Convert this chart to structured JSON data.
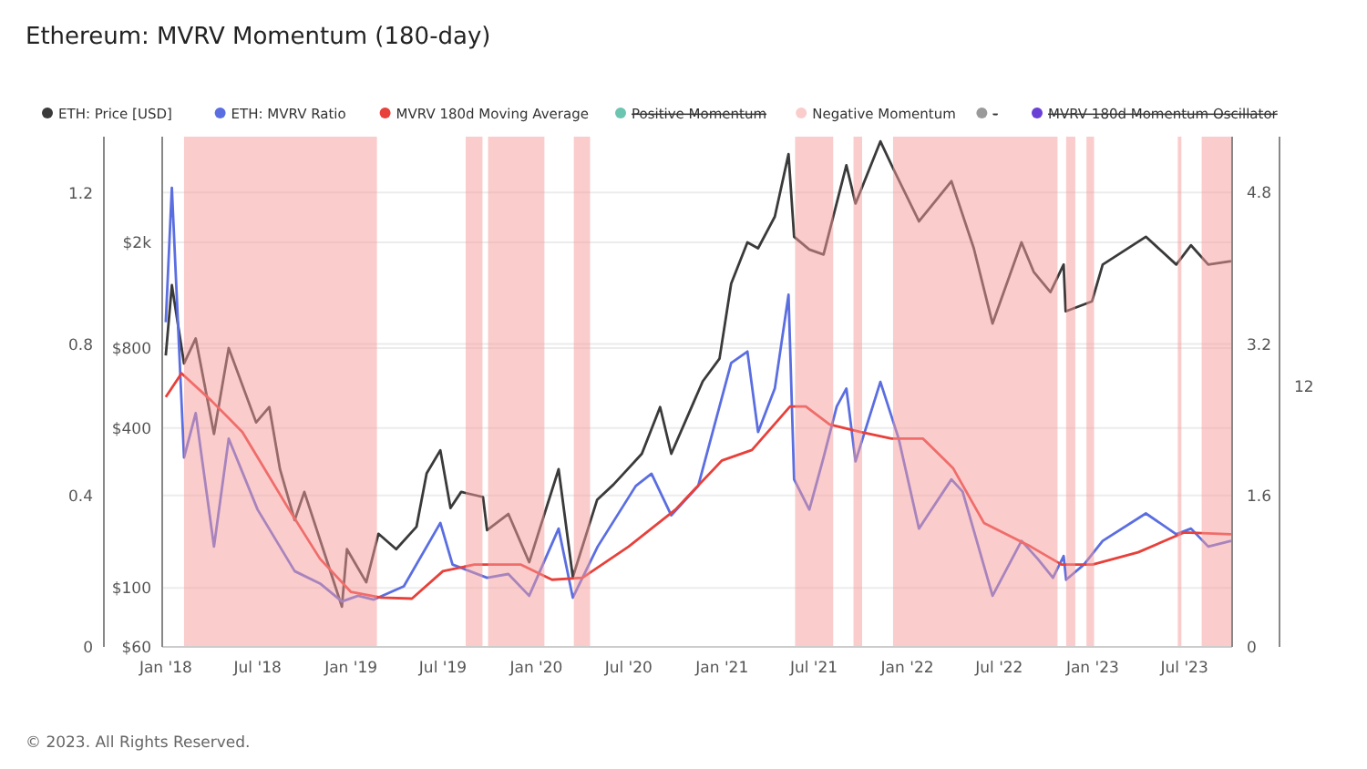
{
  "chart_data": {
    "type": "line",
    "title": "Ethereum: MVRV Momentum (180-day)",
    "annotations": [
      "© 2023. All Rights Reserved.",
      "12"
    ],
    "legend": "top",
    "grid": "y",
    "log": "y",
    "xlim": [
      "2017-12-25",
      "2023-10-03"
    ],
    "xticks": [
      {
        "value": "2018-01-01",
        "label": "Jan '18"
      },
      {
        "value": "2018-07-01",
        "label": "Jul '18"
      },
      {
        "value": "2019-01-01",
        "label": "Jan '19"
      },
      {
        "value": "2019-07-01",
        "label": "Jul '19"
      },
      {
        "value": "2020-01-01",
        "label": "Jan '20"
      },
      {
        "value": "2020-07-01",
        "label": "Jul '20"
      },
      {
        "value": "2021-01-01",
        "label": "Jan '21"
      },
      {
        "value": "2021-07-01",
        "label": "Jul '21"
      },
      {
        "value": "2022-01-01",
        "label": "Jan '22"
      },
      {
        "value": "2022-07-01",
        "label": "Jul '22"
      },
      {
        "value": "2023-01-01",
        "label": "Jan '23"
      },
      {
        "value": "2023-07-01",
        "label": "Jul '23"
      }
    ],
    "ylim": [
      60,
      5000
    ],
    "yticks": [
      {
        "value": 60,
        "label": "$60"
      },
      {
        "value": 100,
        "label": "$100"
      },
      {
        "value": 400,
        "label": "$400"
      },
      {
        "value": 800,
        "label": "$800"
      },
      {
        "value": 2000,
        "label": "$2k"
      }
    ],
    "y2lim": [
      0,
      5.39
    ],
    "y2ticks": [
      0,
      1.6,
      3.2,
      4.8
    ],
    "y3lim": [
      0,
      1.35
    ],
    "y3ticks": [
      0,
      0.4,
      0.8,
      1.2
    ],
    "series": [
      {
        "name": "ETH: Price [USD]",
        "color": "#3a3a3a",
        "axis": "y",
        "x": [
          "2018-01-01",
          "2018-01-13",
          "2018-02-06",
          "2018-03-01",
          "2018-04-06",
          "2018-05-05",
          "2018-06-28",
          "2018-07-24",
          "2018-08-14",
          "2018-09-12",
          "2018-10-01",
          "2018-11-25",
          "2018-12-14",
          "2018-12-24",
          "2019-01-31",
          "2019-02-24",
          "2019-03-31",
          "2019-05-10",
          "2019-05-30",
          "2019-06-26",
          "2019-07-16",
          "2019-08-06",
          "2019-09-18",
          "2019-09-26",
          "2019-11-07",
          "2019-12-18",
          "2020-02-14",
          "2020-03-13",
          "2020-04-30",
          "2020-06-01",
          "2020-07-27",
          "2020-09-01",
          "2020-09-23",
          "2020-11-24",
          "2020-12-27",
          "2021-01-19",
          "2021-02-20",
          "2021-03-13",
          "2021-04-15",
          "2021-05-12",
          "2021-05-23",
          "2021-06-22",
          "2021-07-20",
          "2021-09-03",
          "2021-09-21",
          "2021-11-09",
          "2021-12-04",
          "2022-01-24",
          "2022-03-29",
          "2022-05-12",
          "2022-06-18",
          "2022-08-14",
          "2022-09-07",
          "2022-10-10",
          "2022-11-05",
          "2022-11-09",
          "2022-12-31",
          "2023-01-21",
          "2023-04-16",
          "2023-06-15",
          "2023-07-14",
          "2023-08-17",
          "2023-10-01"
        ],
        "values": [
          750,
          1380,
          700,
          870,
          380,
          800,
          420,
          480,
          280,
          180,
          230,
          110,
          85,
          140,
          105,
          160,
          140,
          170,
          270,
          330,
          200,
          230,
          220,
          165,
          190,
          125,
          280,
          110,
          215,
          245,
          320,
          480,
          320,
          600,
          730,
          1400,
          2000,
          1900,
          2500,
          4300,
          2100,
          1880,
          1800,
          3900,
          2800,
          4800,
          3800,
          2400,
          3400,
          1900,
          990,
          2000,
          1550,
          1300,
          1650,
          1100,
          1200,
          1650,
          2100,
          1650,
          1950,
          1650,
          1700
        ]
      },
      {
        "name": "ETH: MVRV Ratio",
        "color": "#5b6ee1",
        "axis": "y2",
        "x": [
          "2018-01-01",
          "2018-01-13",
          "2018-02-06",
          "2018-03-01",
          "2018-04-06",
          "2018-05-05",
          "2018-07-01",
          "2018-09-12",
          "2018-11-01",
          "2018-12-14",
          "2019-01-15",
          "2019-02-15",
          "2019-04-15",
          "2019-06-26",
          "2019-07-20",
          "2019-09-26",
          "2019-11-07",
          "2019-12-18",
          "2020-02-14",
          "2020-03-13",
          "2020-05-01",
          "2020-07-15",
          "2020-08-15",
          "2020-09-23",
          "2020-11-15",
          "2021-01-19",
          "2021-02-20",
          "2021-03-13",
          "2021-04-15",
          "2021-05-12",
          "2021-05-23",
          "2021-06-22",
          "2021-07-20",
          "2021-08-15",
          "2021-09-03",
          "2021-09-21",
          "2021-11-09",
          "2021-12-15",
          "2022-01-24",
          "2022-03-29",
          "2022-04-20",
          "2022-06-18",
          "2022-08-14",
          "2022-09-15",
          "2022-10-15",
          "2022-11-05",
          "2022-11-10",
          "2022-12-15",
          "2023-01-21",
          "2023-04-16",
          "2023-06-15",
          "2023-07-14",
          "2023-08-17",
          "2023-10-01"
        ],
        "values": [
          3.43,
          4.85,
          2.0,
          2.47,
          1.06,
          2.2,
          1.45,
          0.8,
          0.67,
          0.48,
          0.54,
          0.5,
          0.64,
          1.31,
          0.87,
          0.73,
          0.77,
          0.54,
          1.25,
          0.52,
          1.06,
          1.7,
          1.83,
          1.39,
          1.7,
          3.0,
          3.12,
          2.27,
          2.73,
          3.72,
          1.77,
          1.45,
          2.0,
          2.54,
          2.73,
          1.96,
          2.8,
          2.2,
          1.25,
          1.77,
          1.64,
          0.54,
          1.12,
          0.93,
          0.73,
          0.96,
          0.71,
          0.87,
          1.12,
          1.41,
          1.19,
          1.25,
          1.06,
          1.12
        ]
      },
      {
        "name": "MVRV 180d Moving Average",
        "color": "#e8403a",
        "axis": "y2",
        "x": [
          "2018-01-01",
          "2018-02-01",
          "2018-04-01",
          "2018-06-01",
          "2018-09-01",
          "2018-11-01",
          "2019-01-01",
          "2019-03-01",
          "2019-05-01",
          "2019-07-01",
          "2019-09-01",
          "2019-12-01",
          "2020-02-01",
          "2020-04-01",
          "2020-07-01",
          "2020-10-01",
          "2021-01-01",
          "2021-03-01",
          "2021-05-15",
          "2021-06-15",
          "2021-08-01",
          "2021-10-01",
          "2021-12-01",
          "2022-02-01",
          "2022-04-01",
          "2022-06-01",
          "2022-09-01",
          "2022-11-01",
          "2023-01-01",
          "2023-04-01",
          "2023-07-01",
          "2023-10-01"
        ],
        "values": [
          2.64,
          2.89,
          2.6,
          2.27,
          1.45,
          0.93,
          0.58,
          0.52,
          0.51,
          0.8,
          0.87,
          0.87,
          0.71,
          0.73,
          1.06,
          1.45,
          1.97,
          2.08,
          2.54,
          2.54,
          2.35,
          2.27,
          2.2,
          2.2,
          1.89,
          1.31,
          1.06,
          0.87,
          0.87,
          1.0,
          1.21,
          1.19
        ]
      },
      {
        "name": "Positive Momentum",
        "color": "#6cc5b0",
        "axis": "y3"
      },
      {
        "name": "-",
        "color": "#9a9a9a",
        "axis": "y3"
      },
      {
        "name": "MVRV 180d Momentum Oscillator",
        "color": "#6a3fd6",
        "axis": "y3"
      }
    ],
    "bands": [
      {
        "axis": "x",
        "from": "2018-02-06",
        "to": "2019-02-21",
        "color": "#f59a9a",
        "label": "Negative Momentum"
      },
      {
        "axis": "x",
        "from": "2019-08-15",
        "to": "2019-09-17",
        "color": "#f59a9a"
      },
      {
        "axis": "x",
        "from": "2019-09-28",
        "to": "2020-01-17",
        "color": "#f59a9a"
      },
      {
        "axis": "x",
        "from": "2020-03-15",
        "to": "2020-04-16",
        "color": "#f59a9a"
      },
      {
        "axis": "x",
        "from": "2021-05-25",
        "to": "2021-08-08",
        "color": "#f59a9a"
      },
      {
        "axis": "x",
        "from": "2021-09-17",
        "to": "2021-10-04",
        "color": "#f59a9a"
      },
      {
        "axis": "x",
        "from": "2021-12-04",
        "to": "2022-10-24",
        "color": "#f59a9a"
      },
      {
        "axis": "x",
        "from": "2022-11-10",
        "to": "2022-11-28",
        "color": "#f59a9a"
      },
      {
        "axis": "x",
        "from": "2022-12-20",
        "to": "2023-01-04",
        "color": "#f59a9a"
      },
      {
        "axis": "x",
        "from": "2023-06-18",
        "to": "2023-06-25",
        "color": "#f59a9a"
      },
      {
        "axis": "x",
        "from": "2023-08-04",
        "to": "2023-10-03",
        "color": "#f59a9a"
      }
    ]
  }
}
